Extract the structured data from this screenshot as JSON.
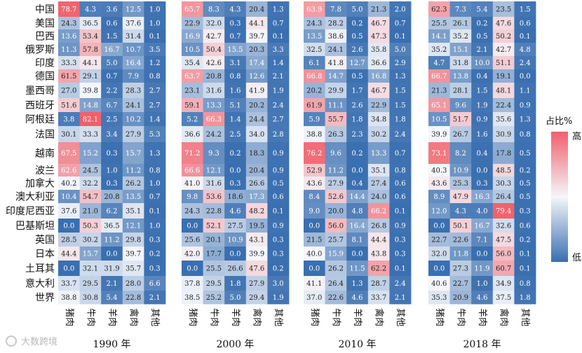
{
  "chart_data": {
    "type": "heatmap",
    "countries": [
      "中国",
      "美国",
      "巴西",
      "俄罗斯",
      "印度",
      "德国",
      "墨西哥",
      "西班牙",
      "阿根廷",
      "法国",
      "越南",
      "波兰",
      "加拿大",
      "澳大利亚",
      "印度尼西亚",
      "巴基斯坦",
      "英国",
      "日本",
      "土耳其",
      "意大利",
      "世界"
    ],
    "meat_types": [
      "猪肉",
      "牛肉",
      "羊肉",
      "禽肉",
      "其他"
    ],
    "colorscale": {
      "low": "#3a6fb0",
      "mid": "#f4f6fb",
      "high": "#f0606a",
      "min": 0,
      "max": 80
    },
    "legend": {
      "title": "占比%",
      "high": "高",
      "low": "低"
    },
    "watermark": "大数跨境",
    "panels": [
      {
        "year": "1990 年",
        "values": [
          [
            78.7,
            4.3,
            3.6,
            12.5,
            1.0
          ],
          [
            24.3,
            36.5,
            0.6,
            37.6,
            1.0
          ],
          [
            13.6,
            53.4,
            1.5,
            31.4,
            0.1
          ],
          [
            11.3,
            57.8,
            16.7,
            10.7,
            3.5
          ],
          [
            33.3,
            44.1,
            5.0,
            16.4,
            1.2
          ],
          [
            61.5,
            29.1,
            0.7,
            7.9,
            0.8
          ],
          [
            27.0,
            39.8,
            2.2,
            28.3,
            2.7
          ],
          [
            51.6,
            14.8,
            6.7,
            24.1,
            2.7
          ],
          [
            3.8,
            82.1,
            2.5,
            10.2,
            1.4
          ],
          [
            30.1,
            33.3,
            3.4,
            27.9,
            5.3
          ],
          [
            67.5,
            15.2,
            0.3,
            15.7,
            1.3
          ],
          [
            62.6,
            24.5,
            1.0,
            11.2,
            0.8
          ],
          [
            40.2,
            32.2,
            0.3,
            26.2,
            1.0
          ],
          [
            10.4,
            54.7,
            20.8,
            13.5,
            0.7
          ],
          [
            37.6,
            21.0,
            6.2,
            35.1,
            0.1
          ],
          [
            0.0,
            50.3,
            36.5,
            12.1,
            1.0
          ],
          [
            28.5,
            30.2,
            11.2,
            29.8,
            0.3
          ],
          [
            44.4,
            15.7,
            0.0,
            39.7,
            0.2
          ],
          [
            0.0,
            32.1,
            31.9,
            35.7,
            0.3
          ],
          [
            33.7,
            29.5,
            2.1,
            28.0,
            6.6
          ],
          [
            38.8,
            30.8,
            5.4,
            22.8,
            2.1
          ]
        ]
      },
      {
        "year": "2000 年",
        "values": [
          [
            65.7,
            8.3,
            4.3,
            20.4,
            1.3
          ],
          [
            22.9,
            32.0,
            0.3,
            44.1,
            0.7
          ],
          [
            16.9,
            42.7,
            0.7,
            39.7,
            0.1
          ],
          [
            10.5,
            50.4,
            15.5,
            20.3,
            3.3
          ],
          [
            35.4,
            42.6,
            3.1,
            17.4,
            1.4
          ],
          [
            63.7,
            20.8,
            0.8,
            12.6,
            2.1
          ],
          [
            23.1,
            31.6,
            1.6,
            41.9,
            1.9
          ],
          [
            59.1,
            13.3,
            5.1,
            20.2,
            2.4
          ],
          [
            5.2,
            66.3,
            1.4,
            24.4,
            2.7
          ],
          [
            36.6,
            24.2,
            2.5,
            34.0,
            2.8
          ],
          [
            71.2,
            9.3,
            0.2,
            18.3,
            0.9
          ],
          [
            66.6,
            12.1,
            0.0,
            20.4,
            0.9
          ],
          [
            41.0,
            31.6,
            0.3,
            26.6,
            0.5
          ],
          [
            9.8,
            53.6,
            18.6,
            17.3,
            0.6
          ],
          [
            24.3,
            22.8,
            4.6,
            48.2,
            0.1
          ],
          [
            0.0,
            52.1,
            27.5,
            19.5,
            0.9
          ],
          [
            25.6,
            20.1,
            10.9,
            43.1,
            0.3
          ],
          [
            42.0,
            17.7,
            0.0,
            39.9,
            0.3
          ],
          [
            0.0,
            25.5,
            26.6,
            47.6,
            0.2
          ],
          [
            37.8,
            29.5,
            1.8,
            27.9,
            3.0
          ],
          [
            38.5,
            25.2,
            5.0,
            29.4,
            1.9
          ]
        ]
      },
      {
        "year": "2010 年",
        "values": [
          [
            63.9,
            7.8,
            5.0,
            21.3,
            2.0
          ],
          [
            24.3,
            28.2,
            0.2,
            46.7,
            0.7
          ],
          [
            13.5,
            38.6,
            0.5,
            47.3,
            0.1
          ],
          [
            32.5,
            24.1,
            2.6,
            35.8,
            5.0
          ],
          [
            6.1,
            41.8,
            12.7,
            36.6,
            2.9
          ],
          [
            66.8,
            14.7,
            0.5,
            16.8,
            1.3
          ],
          [
            20.2,
            29.9,
            1.7,
            46.7,
            1.5
          ],
          [
            61.9,
            11.1,
            2.6,
            22.9,
            1.5
          ],
          [
            5.9,
            55.7,
            1.8,
            34.8,
            1.8
          ],
          [
            38.8,
            26.3,
            2.3,
            30.2,
            2.4
          ],
          [
            76.2,
            9.6,
            0.2,
            13.3,
            0.7
          ],
          [
            52.9,
            11.2,
            0.0,
            35.1,
            0.8
          ],
          [
            43.6,
            27.9,
            0.4,
            27.4,
            0.6
          ],
          [
            8.4,
            52.6,
            14.4,
            24.0,
            0.6
          ],
          [
            9.0,
            20.0,
            4.8,
            66.2,
            0.1
          ],
          [
            0.0,
            56.0,
            16.4,
            26.8,
            0.9
          ],
          [
            21.5,
            25.7,
            8.1,
            44.4,
            0.3
          ],
          [
            40.0,
            15.9,
            0.0,
            43.8,
            0.3
          ],
          [
            0.0,
            26.2,
            11.5,
            62.2,
            0.1
          ],
          [
            41.1,
            26.4,
            1.3,
            28.7,
            2.4
          ],
          [
            37.0,
            22.6,
            4.6,
            33.7,
            2.1
          ]
        ]
      },
      {
        "year": "2018 年",
        "values": [
          [
            62.3,
            7.3,
            5.4,
            23.5,
            1.5
          ],
          [
            25.5,
            26.1,
            0.2,
            47.6,
            0.6
          ],
          [
            14.1,
            35.2,
            0.5,
            50.2,
            0.1
          ],
          [
            35.2,
            15.1,
            2.1,
            42.7,
            4.8
          ],
          [
            4.7,
            31.8,
            10.0,
            51.1,
            2.4
          ],
          [
            66.7,
            13.8,
            0.4,
            19.1,
            0.0
          ],
          [
            21.3,
            28.1,
            1.5,
            48.1,
            1.1
          ],
          [
            65.1,
            9.6,
            1.9,
            22.4,
            0.9
          ],
          [
            10.5,
            51.7,
            0.9,
            35.6,
            1.3
          ],
          [
            39.9,
            26.7,
            1.6,
            30.9,
            0.8
          ],
          [
            73.1,
            8.2,
            0.4,
            17.8,
            0.5
          ],
          [
            40.3,
            10.9,
            0.0,
            48.5,
            0.2
          ],
          [
            43.6,
            25.3,
            0.3,
            30.3,
            0.5
          ],
          [
            8.9,
            47.9,
            16.3,
            26.4,
            0.5
          ],
          [
            12.0,
            4.3,
            4.0,
            79.4,
            0.3
          ],
          [
            0.0,
            50.1,
            16.7,
            32.6,
            0.6
          ],
          [
            22.7,
            22.6,
            7.1,
            47.5,
            0.2
          ],
          [
            32.0,
            11.8,
            0.0,
            56.0,
            0.1
          ],
          [
            0.0,
            27.3,
            11.9,
            60.7,
            0.1
          ],
          [
            40.6,
            22.7,
            1.0,
            34.9,
            0.8
          ],
          [
            35.3,
            20.9,
            4.6,
            37.5,
            1.8
          ]
        ]
      }
    ]
  }
}
